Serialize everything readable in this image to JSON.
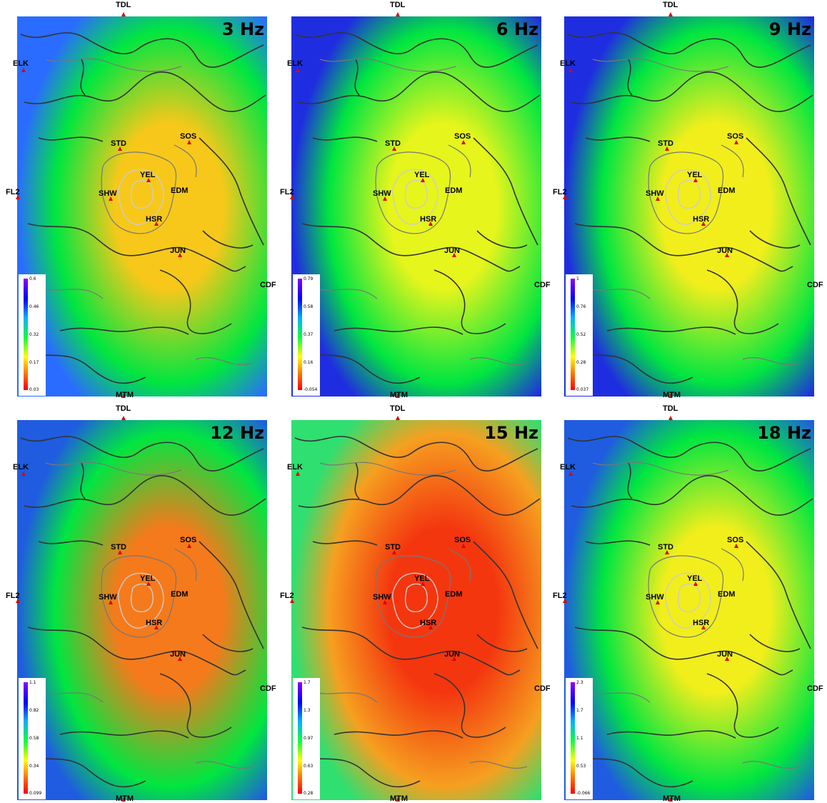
{
  "stations": {
    "TDL": "TDL",
    "ELK": "ELK",
    "FL2": "FL2",
    "STD": "STD",
    "SOS": "SOS",
    "YEL": "YEL",
    "SHW": "SHW",
    "EDM": "EDM",
    "HSR": "HSR",
    "JUN": "JUN",
    "CDF": "CDF",
    "MTM": "MTM"
  },
  "panels": [
    {
      "freq": "3 Hz",
      "legend": [
        "0.6",
        "0.46",
        "0.32",
        "0.17",
        "0.03"
      ],
      "cmin": 0.03,
      "cmax": 0.6,
      "center_value": 0.2,
      "edge_value": 0.45,
      "colors": {
        "edge": "#2a6cff",
        "mid": "#00e640",
        "core": "#f7c81a"
      }
    },
    {
      "freq": "6 Hz",
      "legend": [
        "0.79",
        "0.58",
        "0.37",
        "0.16",
        "-0.054"
      ],
      "cmin": -0.054,
      "cmax": 0.79,
      "center_value": 0.28,
      "edge_value": 0.7,
      "colors": {
        "edge": "#1f2de0",
        "mid": "#00e640",
        "core": "#e6f51c"
      }
    },
    {
      "freq": "9 Hz",
      "legend": [
        "1",
        "0.76",
        "0.52",
        "0.28",
        "0.037"
      ],
      "cmin": 0.037,
      "cmax": 1.0,
      "center_value": 0.35,
      "edge_value": 0.85,
      "colors": {
        "edge": "#1f2de0",
        "mid": "#00e640",
        "core": "#f2ee1c"
      }
    },
    {
      "freq": "12 Hz",
      "legend": [
        "1.1",
        "0.82",
        "0.58",
        "0.34",
        "0.099"
      ],
      "cmin": 0.099,
      "cmax": 1.1,
      "center_value": 0.25,
      "edge_value": 0.8,
      "colors": {
        "edge": "#1f5ce0",
        "mid": "#00e640",
        "core": "#f57a1c"
      }
    },
    {
      "freq": "15 Hz",
      "legend": [
        "1.7",
        "1.3",
        "0.97",
        "0.63",
        "0.28"
      ],
      "cmin": 0.28,
      "cmax": 1.7,
      "center_value": 0.35,
      "edge_value": 1.0,
      "colors": {
        "edge": "#2fdf70",
        "mid": "#f5a020",
        "core": "#f4360f"
      }
    },
    {
      "freq": "18 Hz",
      "legend": [
        "2.3",
        "1.7",
        "1.1",
        "0.53",
        "-0.066"
      ],
      "cmin": -0.066,
      "cmax": 2.3,
      "center_value": 0.8,
      "edge_value": 1.7,
      "colors": {
        "edge": "#1f5ce0",
        "mid": "#00e640",
        "core": "#f2ee1c"
      }
    }
  ]
}
